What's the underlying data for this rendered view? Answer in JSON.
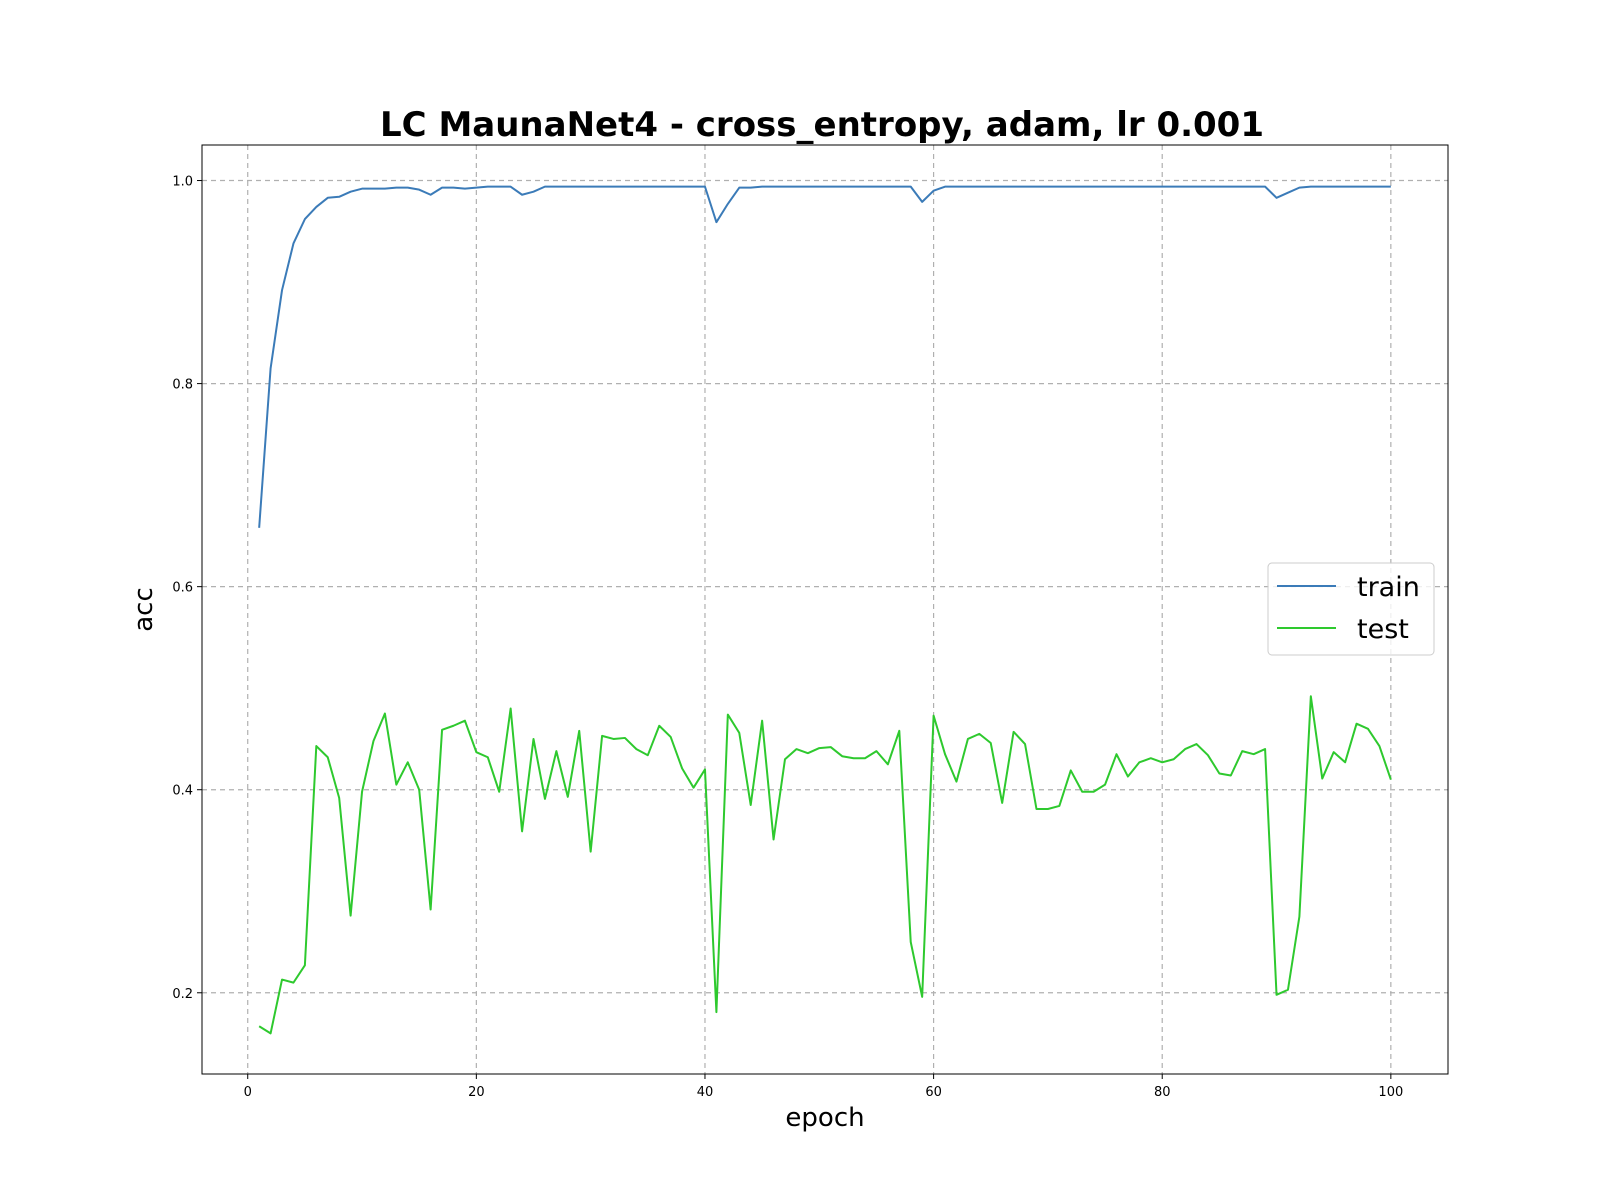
{
  "chart_data": {
    "type": "line",
    "title": "LC MaunaNet4 - cross_entropy, adam, lr 0.001",
    "xlabel": "epoch",
    "ylabel": "acc",
    "xlim": [
      -4,
      105
    ],
    "ylim": [
      0.12,
      1.035
    ],
    "xticks": [
      0,
      20,
      40,
      60,
      80,
      100
    ],
    "yticks": [
      0.2,
      0.4,
      0.6,
      0.8,
      1.0
    ],
    "grid": true,
    "legend": "center-right",
    "x": [
      1,
      2,
      3,
      4,
      5,
      6,
      7,
      8,
      9,
      10,
      11,
      12,
      13,
      14,
      15,
      16,
      17,
      18,
      19,
      20,
      21,
      22,
      23,
      24,
      25,
      26,
      27,
      28,
      29,
      30,
      31,
      32,
      33,
      34,
      35,
      36,
      37,
      38,
      39,
      40,
      41,
      42,
      43,
      44,
      45,
      46,
      47,
      48,
      49,
      50,
      51,
      52,
      53,
      54,
      55,
      56,
      57,
      58,
      59,
      60,
      61,
      62,
      63,
      64,
      65,
      66,
      67,
      68,
      69,
      70,
      71,
      72,
      73,
      74,
      75,
      76,
      77,
      78,
      79,
      80,
      81,
      82,
      83,
      84,
      85,
      86,
      87,
      88,
      89,
      90,
      91,
      92,
      93,
      94,
      95,
      96,
      97,
      98,
      99,
      100
    ],
    "series": [
      {
        "name": "train",
        "color": "#3b7bb8",
        "values": [
          0.658,
          0.815,
          0.892,
          0.938,
          0.962,
          0.974,
          0.983,
          0.984,
          0.989,
          0.992,
          0.992,
          0.992,
          0.993,
          0.993,
          0.991,
          0.986,
          0.993,
          0.993,
          0.992,
          0.993,
          0.994,
          0.994,
          0.994,
          0.986,
          0.989,
          0.994,
          0.994,
          0.994,
          0.994,
          0.994,
          0.994,
          0.994,
          0.994,
          0.994,
          0.994,
          0.994,
          0.994,
          0.994,
          0.994,
          0.994,
          0.959,
          0.977,
          0.993,
          0.993,
          0.994,
          0.994,
          0.994,
          0.994,
          0.994,
          0.994,
          0.994,
          0.994,
          0.994,
          0.994,
          0.994,
          0.994,
          0.994,
          0.994,
          0.979,
          0.99,
          0.994,
          0.994,
          0.994,
          0.994,
          0.994,
          0.994,
          0.994,
          0.994,
          0.994,
          0.994,
          0.994,
          0.994,
          0.994,
          0.994,
          0.994,
          0.994,
          0.994,
          0.994,
          0.994,
          0.994,
          0.994,
          0.994,
          0.994,
          0.994,
          0.994,
          0.994,
          0.994,
          0.994,
          0.994,
          0.983,
          0.988,
          0.993,
          0.994,
          0.994,
          0.994,
          0.994,
          0.994,
          0.994,
          0.994,
          0.994
        ]
      },
      {
        "name": "test",
        "color": "#2ec92e",
        "values": [
          0.167,
          0.16,
          0.213,
          0.21,
          0.227,
          0.443,
          0.432,
          0.392,
          0.276,
          0.398,
          0.448,
          0.475,
          0.405,
          0.427,
          0.4,
          0.282,
          0.459,
          0.463,
          0.468,
          0.437,
          0.432,
          0.398,
          0.48,
          0.359,
          0.45,
          0.391,
          0.438,
          0.393,
          0.458,
          0.339,
          0.453,
          0.45,
          0.451,
          0.44,
          0.434,
          0.463,
          0.452,
          0.421,
          0.402,
          0.42,
          0.181,
          0.474,
          0.456,
          0.385,
          0.468,
          0.351,
          0.43,
          0.44,
          0.436,
          0.441,
          0.442,
          0.433,
          0.431,
          0.431,
          0.438,
          0.425,
          0.458,
          0.25,
          0.196,
          0.473,
          0.435,
          0.408,
          0.45,
          0.455,
          0.446,
          0.387,
          0.457,
          0.445,
          0.381,
          0.381,
          0.384,
          0.419,
          0.398,
          0.398,
          0.405,
          0.435,
          0.413,
          0.427,
          0.431,
          0.427,
          0.43,
          0.44,
          0.445,
          0.434,
          0.416,
          0.414,
          0.438,
          0.435,
          0.44,
          0.198,
          0.203,
          0.275,
          0.492,
          0.411,
          0.437,
          0.427,
          0.465,
          0.46,
          0.443,
          0.41
        ]
      }
    ]
  }
}
